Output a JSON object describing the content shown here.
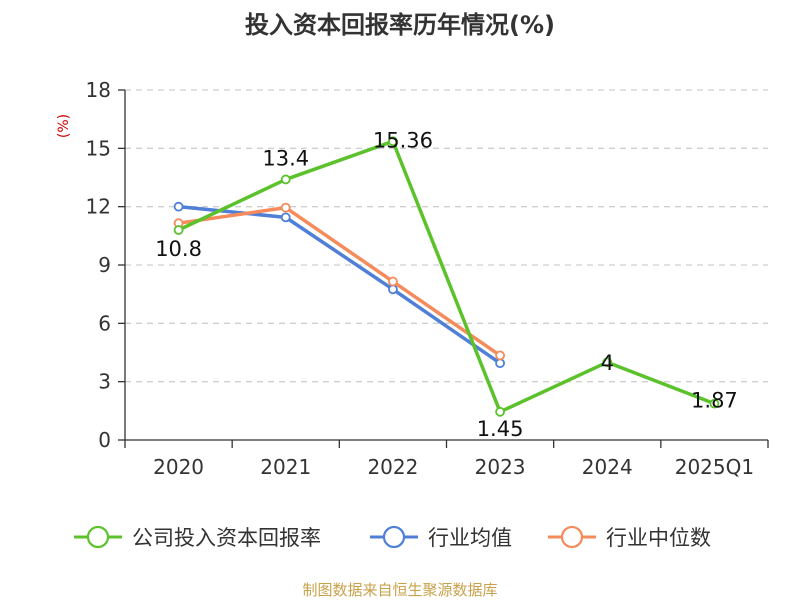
{
  "title": "投入资本回报率历年情况(%)",
  "source": "制图数据来自恒生聚源数据库",
  "chart_data": {
    "type": "line",
    "title": "投入资本回报率历年情况(%)",
    "ylabel": "(%)",
    "categories": [
      "2020",
      "2021",
      "2022",
      "2023",
      "2024",
      "2025Q1"
    ],
    "ylim": [
      0,
      18
    ],
    "yticks": [
      "0",
      "3",
      "6",
      "9",
      "12",
      "15",
      "18"
    ],
    "grid": true,
    "legend_position": "bottom",
    "series": [
      {
        "name": "公司投入资本回报率",
        "color": "#5cc22c",
        "values": [
          10.8,
          13.4,
          15.36,
          1.45,
          4,
          1.87
        ],
        "labels": [
          "10.8",
          "13.4",
          "15.36",
          "1.45",
          "4",
          "1.87"
        ]
      },
      {
        "name": "行业均值",
        "color": "#4f7fd6",
        "values": [
          12.0,
          11.45,
          7.75,
          3.95,
          null,
          null
        ]
      },
      {
        "name": "行业中位数",
        "color": "#f58b5b",
        "values": [
          11.15,
          11.95,
          8.15,
          4.35,
          null,
          null
        ]
      }
    ]
  }
}
